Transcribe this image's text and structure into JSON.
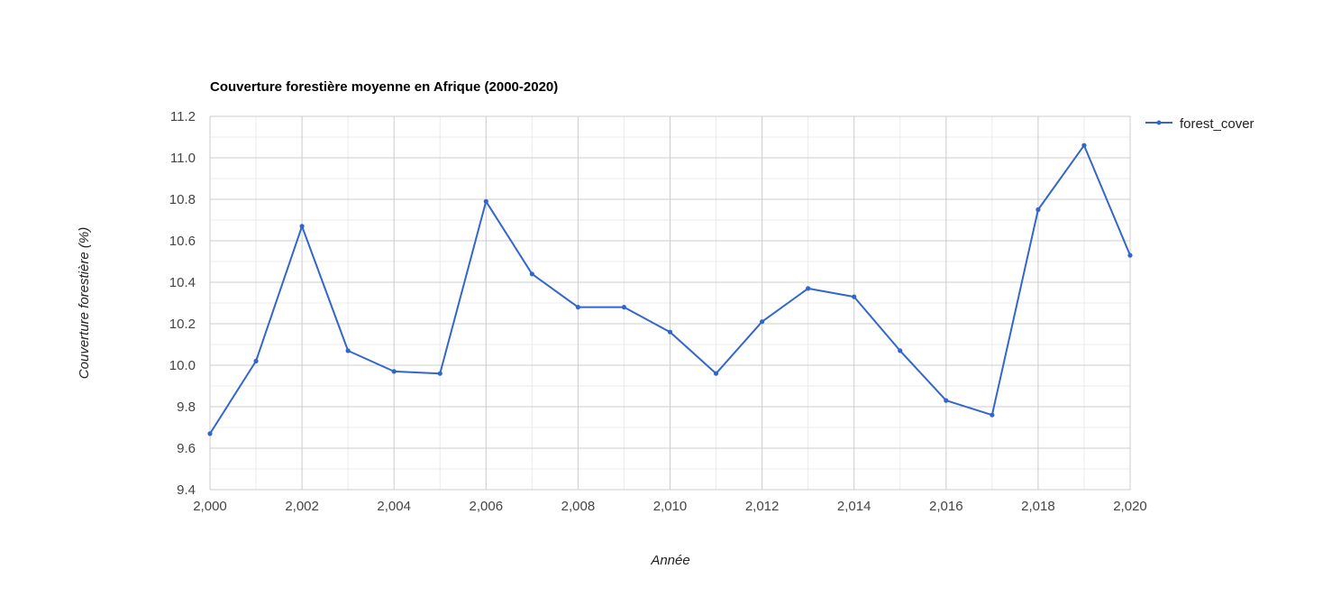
{
  "chart_data": {
    "type": "line",
    "title": "Couverture forestière moyenne en Afrique (2000-2020)",
    "xlabel": "Année",
    "ylabel": "Couverture forestière (%)",
    "x": [
      2000,
      2001,
      2002,
      2003,
      2004,
      2005,
      2006,
      2007,
      2008,
      2009,
      2010,
      2011,
      2012,
      2013,
      2014,
      2015,
      2016,
      2017,
      2018,
      2019,
      2020
    ],
    "series": [
      {
        "name": "forest_cover",
        "color": "#3366cc",
        "values": [
          9.67,
          10.02,
          10.67,
          10.07,
          9.97,
          9.96,
          10.79,
          10.44,
          10.28,
          10.28,
          10.16,
          9.96,
          10.21,
          10.37,
          10.33,
          10.07,
          9.83,
          9.76,
          10.75,
          11.06,
          10.53
        ]
      }
    ],
    "xlim": [
      2000,
      2020
    ],
    "ylim": [
      9.4,
      11.2
    ],
    "x_ticks": [
      "2,000",
      "2,002",
      "2,004",
      "2,006",
      "2,008",
      "2,010",
      "2,012",
      "2,014",
      "2,016",
      "2,018",
      "2,020"
    ],
    "y_ticks": [
      "9.4",
      "9.6",
      "9.8",
      "10.0",
      "10.2",
      "10.4",
      "10.6",
      "10.8",
      "11.0",
      "11.2"
    ],
    "grid": true,
    "legend_position": "right"
  }
}
